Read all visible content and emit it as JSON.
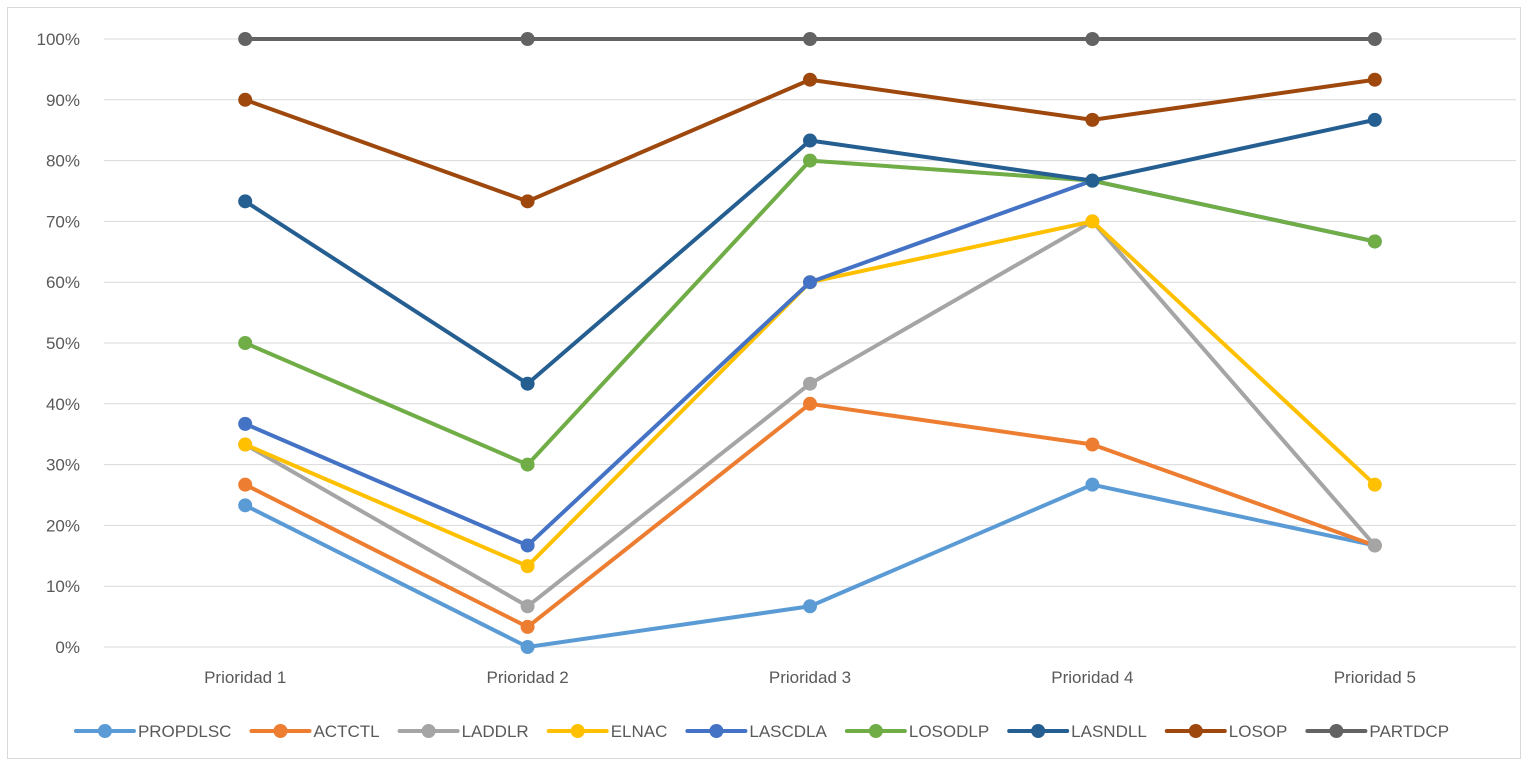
{
  "chart_data": {
    "type": "line",
    "title": "",
    "xlabel": "",
    "ylabel": "",
    "categories": [
      "Prioridad 1",
      "Prioridad 2",
      "Prioridad 3",
      "Prioridad 4",
      "Prioridad 5"
    ],
    "y_ticks": [
      "0%",
      "10%",
      "20%",
      "30%",
      "40%",
      "50%",
      "60%",
      "70%",
      "80%",
      "90%",
      "100%"
    ],
    "ylim": [
      0,
      100
    ],
    "grid": true,
    "legend_position": "bottom",
    "series": [
      {
        "name": "PROPDLSC",
        "color": "#5b9bd5",
        "values": [
          23.3,
          0,
          6.7,
          26.7,
          16.7
        ]
      },
      {
        "name": "ACTCTL",
        "color": "#ed7d31",
        "values": [
          26.7,
          3.3,
          40,
          33.3,
          16.7
        ]
      },
      {
        "name": "LADDLR",
        "color": "#a5a5a5",
        "values": [
          33.3,
          6.7,
          43.3,
          70,
          16.7
        ]
      },
      {
        "name": "ELNAC",
        "color": "#ffc000",
        "values": [
          33.3,
          13.3,
          60,
          70,
          26.7
        ]
      },
      {
        "name": "LASCDLA",
        "color": "#4472c4",
        "values": [
          36.7,
          16.7,
          60,
          76.7,
          66.7
        ]
      },
      {
        "name": "LOSODLP",
        "color": "#70ad47",
        "values": [
          50,
          30,
          80,
          76.7,
          66.7
        ]
      },
      {
        "name": "LASNDLL",
        "color": "#255e91",
        "values": [
          73.3,
          43.3,
          83.3,
          76.7,
          86.7
        ]
      },
      {
        "name": "LOSOP",
        "color": "#9e480e",
        "values": [
          90,
          73.3,
          93.3,
          86.7,
          93.3
        ]
      },
      {
        "name": "PARTDCP",
        "color": "#636363",
        "values": [
          100,
          100,
          100,
          100,
          100
        ]
      }
    ]
  }
}
